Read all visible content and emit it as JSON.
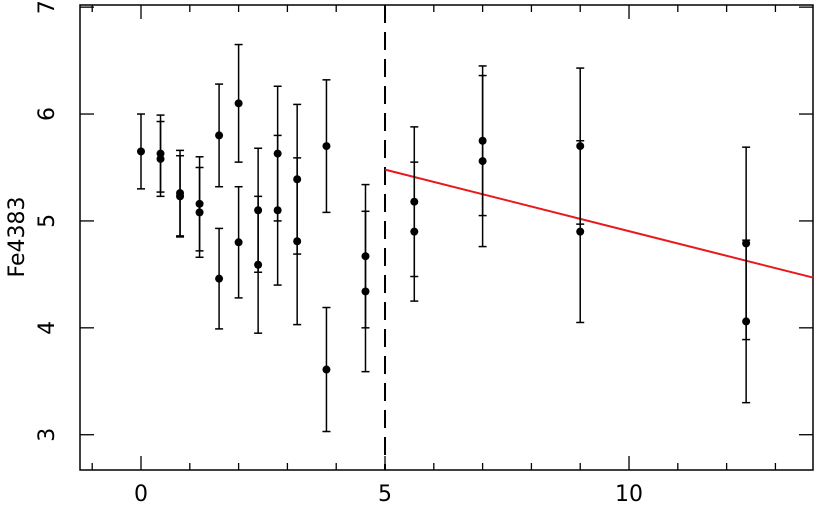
{
  "chart_data": {
    "type": "scatter",
    "ylabel": "Fe4383",
    "xlim": [
      -1.25,
      13.77
    ],
    "ylim": [
      2.67,
      7.02
    ],
    "xticks": [
      0,
      5,
      10
    ],
    "x_minor_ticks": [
      -1,
      1,
      2,
      3,
      4,
      6,
      7,
      8,
      9,
      11,
      12,
      13
    ],
    "yticks": [
      3,
      4,
      5,
      6,
      7
    ],
    "series": [
      {
        "color": "#000000",
        "x": [
          0,
          0.4,
          0.4,
          0.8,
          0.8,
          1.2,
          1.2,
          1.6,
          1.6,
          2.0,
          2.0,
          2.4,
          2.4,
          2.8,
          2.8,
          3.2,
          3.2,
          3.8,
          3.8,
          4.6,
          4.6,
          5.6,
          5.6,
          7.0,
          7.0,
          9.0,
          9.0,
          12.4,
          12.4
        ],
        "values": [
          5.65,
          5.63,
          5.58,
          5.26,
          5.23,
          5.16,
          5.08,
          5.8,
          4.46,
          6.1,
          4.8,
          5.1,
          4.59,
          5.63,
          5.1,
          5.39,
          4.81,
          5.7,
          3.61,
          4.67,
          4.34,
          5.18,
          4.9,
          5.75,
          5.56,
          5.7,
          4.9,
          4.79,
          4.06
        ],
        "errors": [
          0.35,
          0.36,
          0.35,
          0.4,
          0.38,
          0.44,
          0.42,
          0.48,
          0.47,
          0.55,
          0.52,
          0.58,
          0.64,
          0.63,
          0.7,
          0.7,
          0.78,
          0.62,
          0.58,
          0.67,
          0.75,
          0.7,
          0.65,
          0.7,
          0.8,
          0.73,
          0.85,
          0.9,
          0.76
        ]
      }
    ],
    "fit_line": {
      "color": "#e8191c",
      "x": [
        5,
        13.77
      ],
      "values": [
        5.48,
        4.47
      ]
    },
    "vline": {
      "x": 5,
      "style": "dashed"
    }
  }
}
